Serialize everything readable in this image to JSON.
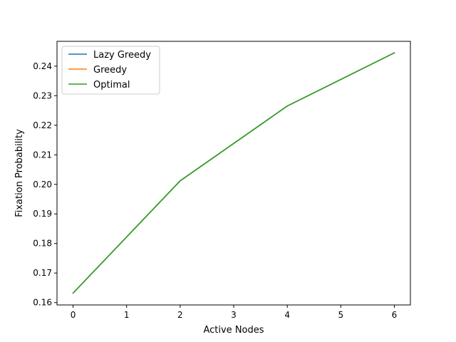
{
  "chart_data": {
    "type": "line",
    "title": "",
    "xlabel": "Active Nodes",
    "ylabel": "Fixation Probability",
    "xlim": [
      -0.3,
      6.3
    ],
    "ylim": [
      0.1592,
      0.2484
    ],
    "xticks": [
      0,
      1,
      2,
      3,
      4,
      5,
      6
    ],
    "yticks": [
      0.16,
      0.17,
      0.18,
      0.19,
      0.2,
      0.21,
      0.22,
      0.23,
      0.24
    ],
    "ytick_labels": [
      "0.16",
      "0.17",
      "0.18",
      "0.19",
      "0.20",
      "0.21",
      "0.22",
      "0.23",
      "0.24"
    ],
    "x": [
      0,
      2,
      4,
      6
    ],
    "series": [
      {
        "name": "Lazy Greedy",
        "values": [
          0.1632,
          0.2012,
          0.2265,
          0.2445
        ],
        "color": "#1f77b4"
      },
      {
        "name": "Greedy",
        "values": [
          0.1632,
          0.2012,
          0.2265,
          0.2445
        ],
        "color": "#ff7f0e"
      },
      {
        "name": "Optimal",
        "values": [
          0.1632,
          0.2012,
          0.2265,
          0.2445
        ],
        "color": "#2ca02c"
      }
    ],
    "legend_position": "upper-left",
    "grid": false
  }
}
